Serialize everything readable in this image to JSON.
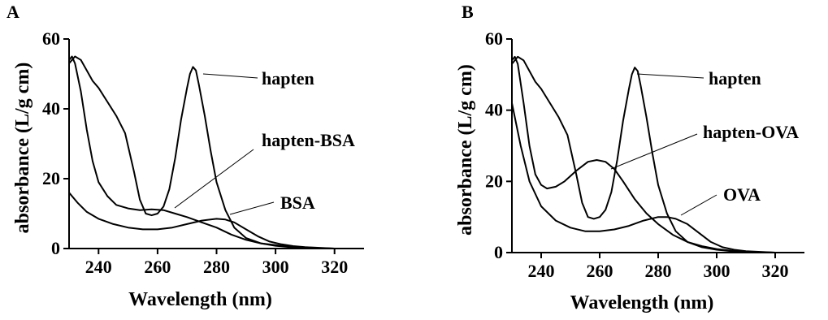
{
  "chart_data": [
    {
      "panel": "A",
      "type": "line",
      "xlabel": "Wavelength (nm)",
      "ylabel": "absorbance (L/g cm)",
      "xlim": [
        230,
        330
      ],
      "ylim": [
        0,
        60
      ],
      "xticks": [
        240,
        260,
        280,
        300,
        320
      ],
      "yticks": [
        0,
        20,
        40,
        60
      ],
      "series": [
        {
          "name": "hapten",
          "x": [
            230,
            231,
            232,
            234,
            236,
            238,
            240,
            243,
            246,
            249,
            252,
            254,
            256,
            258,
            260,
            262,
            264,
            266,
            268,
            270,
            271,
            272,
            273,
            274,
            276,
            278,
            280,
            283,
            286,
            290,
            295,
            300,
            305,
            310,
            315,
            320
          ],
          "y": [
            53,
            54,
            55,
            54,
            51,
            48,
            46,
            42,
            38,
            33,
            22,
            14,
            10,
            9.5,
            10,
            12,
            17,
            26,
            37,
            46,
            50,
            52,
            51,
            47,
            38,
            28,
            19,
            11,
            6,
            3,
            1.5,
            0.8,
            0.4,
            0.2,
            0.1,
            0
          ]
        },
        {
          "name": "hapten-BSA",
          "x": [
            230,
            231,
            232,
            234,
            236,
            238,
            240,
            243,
            246,
            250,
            254,
            258,
            262,
            266,
            270,
            275,
            280,
            285,
            290,
            295,
            300,
            305,
            310,
            315,
            320
          ],
          "y": [
            54,
            55,
            53,
            45,
            34,
            25,
            19,
            15,
            12.5,
            11.5,
            11,
            11.2,
            11,
            10,
            9,
            7.5,
            6,
            4,
            2.5,
            1.5,
            1,
            0.5,
            0.3,
            0.1,
            0
          ]
        },
        {
          "name": "BSA",
          "x": [
            230,
            233,
            236,
            240,
            245,
            250,
            255,
            260,
            265,
            270,
            275,
            280,
            283,
            286,
            290,
            294,
            298,
            302,
            306,
            310,
            315,
            320
          ],
          "y": [
            16,
            13,
            10.5,
            8.5,
            7,
            6,
            5.5,
            5.5,
            6,
            7,
            8,
            8.5,
            8.3,
            7.5,
            5.5,
            3.5,
            2,
            1.2,
            0.7,
            0.4,
            0.2,
            0
          ]
        }
      ]
    },
    {
      "panel": "B",
      "type": "line",
      "xlabel": "Wavelength (nm)",
      "ylabel": "absorbance (L/g cm)",
      "xlim": [
        230,
        330
      ],
      "ylim": [
        0,
        60
      ],
      "xticks": [
        240,
        260,
        280,
        300,
        320
      ],
      "yticks": [
        0,
        20,
        40,
        60
      ],
      "series": [
        {
          "name": "hapten",
          "x": [
            230,
            231,
            232,
            234,
            236,
            238,
            240,
            243,
            246,
            249,
            252,
            254,
            256,
            258,
            260,
            262,
            264,
            266,
            268,
            270,
            271,
            272,
            273,
            274,
            276,
            278,
            280,
            283,
            286,
            290,
            295,
            300,
            305,
            310,
            315,
            320
          ],
          "y": [
            53,
            54,
            55,
            54,
            51,
            48,
            46,
            42,
            38,
            33,
            22,
            14,
            10,
            9.5,
            10,
            12,
            17,
            26,
            37,
            46,
            50,
            52,
            51,
            47,
            38,
            28,
            19,
            11,
            6,
            3,
            1.5,
            0.8,
            0.4,
            0.2,
            0.1,
            0
          ]
        },
        {
          "name": "hapten-OVA",
          "x": [
            230,
            231,
            232,
            234,
            236,
            238,
            240,
            242,
            245,
            248,
            252,
            256,
            259,
            262,
            265,
            268,
            272,
            276,
            280,
            285,
            290,
            295,
            300,
            305,
            310,
            315,
            320
          ],
          "y": [
            54,
            55,
            53,
            42,
            30,
            22,
            19,
            18,
            18.5,
            20,
            23,
            25.5,
            26,
            25.5,
            23.5,
            20,
            15,
            11,
            8,
            5,
            3,
            1.8,
            1,
            0.5,
            0.3,
            0.1,
            0
          ]
        },
        {
          "name": "OVA",
          "x": [
            230,
            233,
            236,
            240,
            245,
            250,
            255,
            260,
            265,
            270,
            275,
            280,
            283,
            286,
            290,
            294,
            298,
            302,
            306,
            310,
            315,
            320
          ],
          "y": [
            42,
            30,
            20,
            13,
            9,
            7,
            6,
            6,
            6.5,
            7.5,
            9,
            10,
            10,
            9.5,
            8,
            5.5,
            3,
            1.5,
            0.8,
            0.4,
            0.2,
            0
          ]
        }
      ]
    }
  ]
}
